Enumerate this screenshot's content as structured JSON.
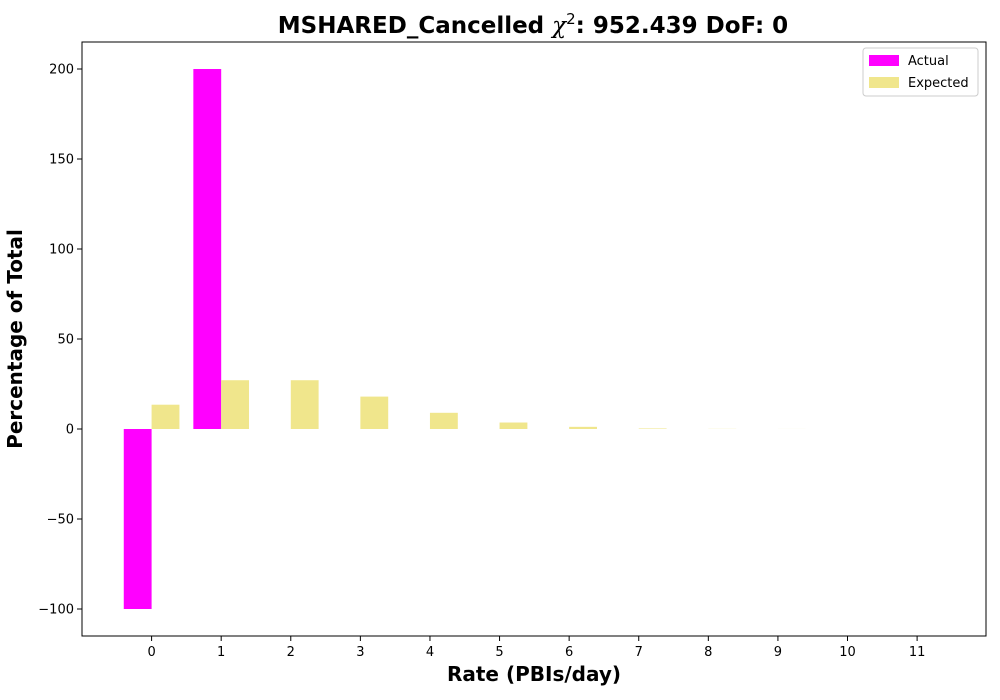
{
  "chart_data": {
    "type": "bar",
    "title_prefix": "MSHARED_Cancelled ",
    "title_chi": "χ",
    "title_sup": "2",
    "title_suffix": ": 952.439 DoF: 0",
    "xlabel": "Rate (PBIs/day)",
    "ylabel": "Percentage of Total",
    "categories": [
      "0",
      "1",
      "2",
      "3",
      "4",
      "5",
      "6",
      "7",
      "8",
      "9",
      "10",
      "11"
    ],
    "ylim": [
      -115,
      215
    ],
    "yticks": [
      -100,
      -50,
      0,
      50,
      100,
      150,
      200
    ],
    "ytick_labels": [
      "−100",
      "−50",
      "0",
      "50",
      "100",
      "150",
      "200"
    ],
    "grid": false,
    "legend_position": "top-right",
    "series": [
      {
        "name": "Actual",
        "color": "#ff00ff",
        "values": [
          -100,
          200,
          0,
          0,
          0,
          0,
          0,
          0,
          0,
          0,
          0,
          0
        ]
      },
      {
        "name": "Expected",
        "color": "#f0e68c",
        "values": [
          13.5,
          27.1,
          27.1,
          18.0,
          9.0,
          3.6,
          1.2,
          0.3,
          0.08,
          0.02,
          0.0,
          0.0
        ]
      }
    ]
  }
}
